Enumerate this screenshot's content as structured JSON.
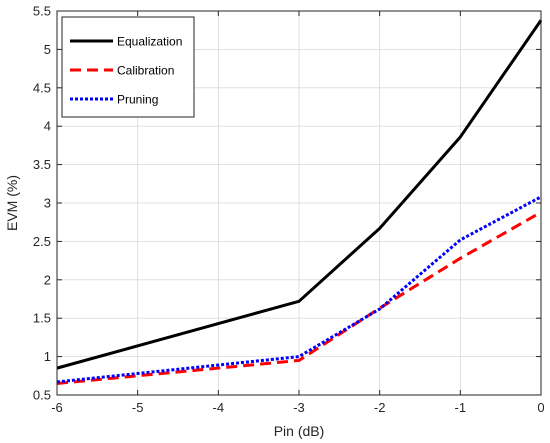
{
  "chart_data": {
    "type": "line",
    "xlabel": "Pin (dB)",
    "ylabel": "EVM (%)",
    "xlim": [
      -6,
      0
    ],
    "ylim": [
      0.5,
      5.5
    ],
    "xticks": [
      -6,
      -5,
      -4,
      -3,
      -2,
      -1,
      0
    ],
    "yticks": [
      0.5,
      1,
      1.5,
      2,
      2.5,
      3,
      3.5,
      4,
      4.5,
      5,
      5.5
    ],
    "grid": true,
    "legend_position": "top-left",
    "x": [
      -6,
      -3,
      -2,
      -1,
      0
    ],
    "series": [
      {
        "name": "Equalization",
        "color": "#000000",
        "style": "solid",
        "values": [
          0.85,
          1.72,
          2.67,
          3.86,
          5.38
        ]
      },
      {
        "name": "Calibration",
        "color": "#ff0000",
        "style": "dashed",
        "values": [
          0.65,
          0.95,
          1.63,
          2.28,
          2.88
        ]
      },
      {
        "name": "Pruning",
        "color": "#0000ff",
        "style": "dotted",
        "values": [
          0.67,
          1.0,
          1.62,
          2.52,
          3.08
        ]
      }
    ]
  }
}
